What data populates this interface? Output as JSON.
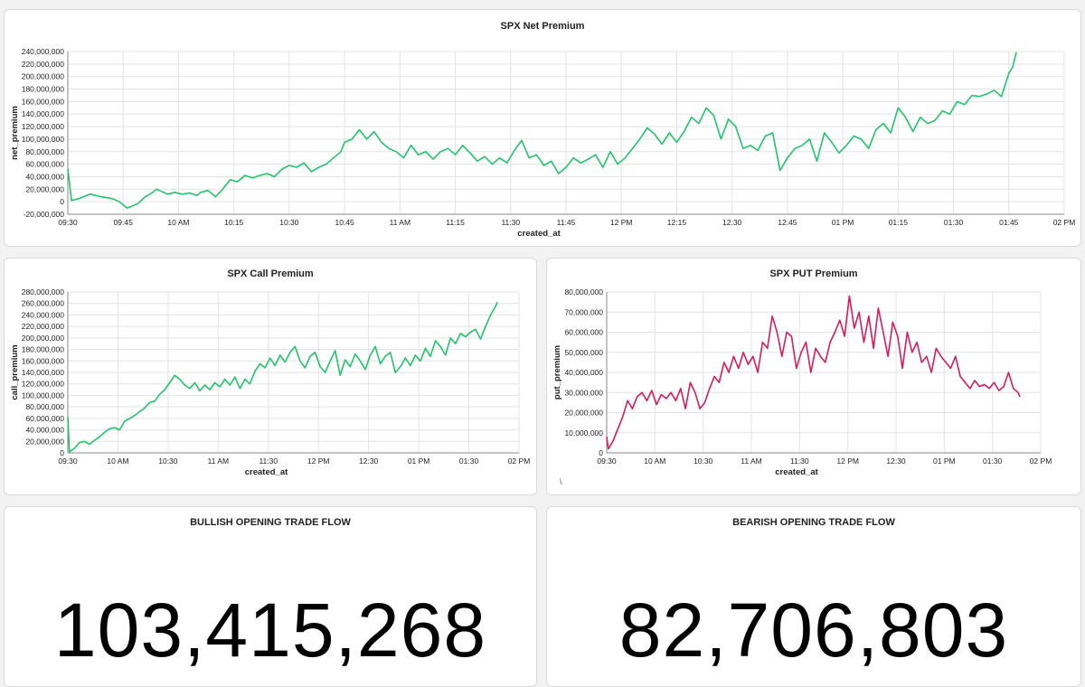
{
  "charts": [
    {
      "title": "SPX Net Premium",
      "xlabel": "created_at",
      "ylabel": "net_premium"
    },
    {
      "title": "SPX Call Premium",
      "xlabel": "created_at",
      "ylabel": "call_premium"
    },
    {
      "title": "SPX PUT Premium",
      "xlabel": "created_at",
      "ylabel": "put_premium"
    }
  ],
  "stats": {
    "bullish": {
      "title": "BULLISH OPENING TRADE FLOW",
      "value": "103,415,268"
    },
    "bearish": {
      "title": "BEARISH OPENING TRADE FLOW",
      "value": "82,706,803"
    }
  },
  "stray_mark": "\\",
  "chart_data": [
    {
      "type": "line",
      "title": "SPX Net Premium",
      "xlabel": "created_at",
      "ylabel": "net_premium",
      "color": "#21c46a",
      "xlim": [
        570,
        840
      ],
      "ylim": [
        -20000000,
        240000000
      ],
      "yticks": [
        -20000000,
        0,
        20000000,
        40000000,
        60000000,
        80000000,
        100000000,
        120000000,
        140000000,
        160000000,
        180000000,
        200000000,
        220000000,
        240000000
      ],
      "yticklabels": [
        "-20,000,000",
        "0",
        "20,000,000",
        "40,000,000",
        "60,000,000",
        "80,000,000",
        "100,000,000",
        "120,000,000",
        "140,000,000",
        "160,000,000",
        "180,000,000",
        "200,000,000",
        "220,000,000",
        "240,000,000"
      ],
      "xticks": [
        570,
        585,
        600,
        615,
        630,
        645,
        660,
        675,
        690,
        705,
        720,
        735,
        750,
        765,
        780,
        795,
        810,
        825,
        840
      ],
      "xticklabels": [
        "09:30",
        "09:45",
        "10 AM",
        "10:15",
        "10:30",
        "10:45",
        "11 AM",
        "11:15",
        "11:30",
        "11:45",
        "12 PM",
        "12:15",
        "12:30",
        "12:45",
        "01 PM",
        "01:15",
        "01:30",
        "01:45",
        "02 PM"
      ],
      "grid": true,
      "series": [
        {
          "x": [
            570,
            571,
            573,
            576,
            579,
            582,
            584,
            585,
            586,
            587,
            589,
            591,
            593,
            594,
            596,
            597,
            599,
            601,
            603,
            605,
            606,
            608,
            610,
            612,
            614,
            616,
            618,
            620,
            622,
            624,
            626,
            628,
            630,
            632,
            634,
            636,
            638,
            640,
            642,
            644,
            645,
            647,
            649,
            651,
            653,
            655,
            657,
            659,
            661,
            663,
            665,
            667,
            669,
            671,
            673,
            675,
            677,
            679,
            681,
            683,
            685,
            687,
            689,
            691,
            693,
            695,
            697,
            699,
            701,
            703,
            705,
            707,
            709,
            711,
            713,
            715,
            717,
            719,
            721,
            723,
            725,
            727,
            729,
            731,
            733,
            735,
            737,
            739,
            741,
            743,
            745,
            747,
            749,
            751,
            753,
            755,
            757,
            759,
            761,
            763,
            765,
            767,
            769,
            771,
            773,
            775,
            777,
            779,
            781,
            783,
            785,
            787,
            789,
            791,
            793,
            795,
            797,
            799,
            801,
            803,
            805,
            807,
            809,
            811,
            813,
            815,
            817,
            819,
            821,
            823,
            825,
            826,
            827
          ],
          "y": [
            52000000,
            2000000,
            5000000,
            12000000,
            8000000,
            5000000,
            0,
            -5000000,
            -10000000,
            -8000000,
            -3000000,
            8000000,
            15000000,
            20000000,
            15000000,
            12000000,
            15000000,
            12000000,
            14000000,
            10000000,
            15000000,
            18000000,
            8000000,
            20000000,
            35000000,
            32000000,
            42000000,
            38000000,
            42000000,
            45000000,
            40000000,
            52000000,
            58000000,
            55000000,
            62000000,
            48000000,
            55000000,
            60000000,
            70000000,
            80000000,
            95000000,
            100000000,
            115000000,
            100000000,
            112000000,
            95000000,
            85000000,
            80000000,
            70000000,
            90000000,
            75000000,
            80000000,
            68000000,
            80000000,
            85000000,
            75000000,
            90000000,
            78000000,
            65000000,
            72000000,
            60000000,
            70000000,
            62000000,
            82000000,
            98000000,
            70000000,
            75000000,
            58000000,
            65000000,
            45000000,
            55000000,
            70000000,
            62000000,
            68000000,
            75000000,
            55000000,
            80000000,
            60000000,
            70000000,
            85000000,
            100000000,
            118000000,
            108000000,
            92000000,
            110000000,
            95000000,
            112000000,
            135000000,
            125000000,
            150000000,
            138000000,
            100000000,
            132000000,
            120000000,
            85000000,
            90000000,
            82000000,
            105000000,
            110000000,
            50000000,
            70000000,
            85000000,
            90000000,
            100000000,
            65000000,
            110000000,
            95000000,
            78000000,
            90000000,
            105000000,
            100000000,
            85000000,
            115000000,
            125000000,
            110000000,
            150000000,
            135000000,
            112000000,
            135000000,
            125000000,
            130000000,
            145000000,
            140000000,
            160000000,
            155000000,
            170000000,
            168000000,
            172000000,
            178000000,
            168000000,
            205000000,
            215000000,
            238000000
          ]
        }
      ]
    },
    {
      "type": "line",
      "title": "SPX Call Premium",
      "xlabel": "created_at",
      "ylabel": "call_premium",
      "color": "#21c46a",
      "xlim": [
        570,
        840
      ],
      "ylim": [
        0,
        280000000
      ],
      "yticks": [
        0,
        20000000,
        40000000,
        60000000,
        80000000,
        100000000,
        120000000,
        140000000,
        160000000,
        180000000,
        200000000,
        220000000,
        240000000,
        260000000,
        280000000
      ],
      "yticklabels": [
        "0",
        "20,000,000",
        "40,000,000",
        "60,000,000",
        "80,000,000",
        "100,000,000",
        "120,000,000",
        "140,000,000",
        "160,000,000",
        "180,000,000",
        "200,000,000",
        "220,000,000",
        "240,000,000",
        "260,000,000",
        "280,000,000"
      ],
      "xticks": [
        570,
        600,
        630,
        660,
        690,
        720,
        750,
        780,
        810,
        840
      ],
      "xticklabels": [
        "09:30",
        "10 AM",
        "10:30",
        "11 AM",
        "11:30",
        "12 PM",
        "12:30",
        "01 PM",
        "01:30",
        "02 PM"
      ],
      "grid": true,
      "series": [
        {
          "x": [
            570,
            571,
            574,
            577,
            580,
            583,
            586,
            589,
            592,
            595,
            598,
            601,
            604,
            607,
            610,
            613,
            616,
            619,
            622,
            625,
            628,
            631,
            634,
            637,
            640,
            643,
            646,
            649,
            652,
            655,
            658,
            661,
            664,
            667,
            670,
            673,
            676,
            679,
            682,
            685,
            688,
            691,
            694,
            697,
            700,
            703,
            706,
            709,
            712,
            715,
            718,
            721,
            724,
            727,
            730,
            733,
            736,
            739,
            742,
            745,
            748,
            751,
            754,
            757,
            760,
            763,
            766,
            769,
            772,
            775,
            778,
            781,
            784,
            787,
            790,
            793,
            796,
            799,
            802,
            805,
            808,
            811,
            814,
            817,
            820,
            823,
            826,
            827
          ],
          "y": [
            62000000,
            2000000,
            8000000,
            18000000,
            20000000,
            15000000,
            22000000,
            28000000,
            36000000,
            42000000,
            44000000,
            40000000,
            55000000,
            60000000,
            65000000,
            72000000,
            78000000,
            88000000,
            90000000,
            102000000,
            110000000,
            122000000,
            135000000,
            128000000,
            118000000,
            112000000,
            122000000,
            108000000,
            118000000,
            110000000,
            122000000,
            115000000,
            128000000,
            118000000,
            132000000,
            112000000,
            128000000,
            120000000,
            142000000,
            155000000,
            148000000,
            165000000,
            152000000,
            170000000,
            158000000,
            175000000,
            185000000,
            160000000,
            148000000,
            168000000,
            175000000,
            150000000,
            140000000,
            160000000,
            178000000,
            135000000,
            162000000,
            150000000,
            172000000,
            160000000,
            145000000,
            170000000,
            185000000,
            155000000,
            168000000,
            175000000,
            140000000,
            150000000,
            165000000,
            152000000,
            170000000,
            160000000,
            182000000,
            168000000,
            195000000,
            185000000,
            170000000,
            200000000,
            190000000,
            208000000,
            202000000,
            210000000,
            215000000,
            198000000,
            220000000,
            240000000,
            255000000,
            262000000
          ]
        }
      ]
    },
    {
      "type": "line",
      "title": "SPX PUT Premium",
      "xlabel": "created_at",
      "ylabel": "put_premium",
      "color": "#d81b60",
      "xlim": [
        570,
        840
      ],
      "ylim": [
        0,
        80000000
      ],
      "yticks": [
        0,
        10000000,
        20000000,
        30000000,
        40000000,
        50000000,
        60000000,
        70000000,
        80000000
      ],
      "yticklabels": [
        "0",
        "10,000,000",
        "20,000,000",
        "30,000,000",
        "40,000,000",
        "50,000,000",
        "60,000,000",
        "70,000,000",
        "80,000,000"
      ],
      "xticks": [
        570,
        600,
        630,
        660,
        690,
        720,
        750,
        780,
        810,
        840
      ],
      "xticklabels": [
        "09:30",
        "10 AM",
        "10:30",
        "11 AM",
        "11:30",
        "12 PM",
        "12:30",
        "01 PM",
        "01:30",
        "02 PM"
      ],
      "grid": true,
      "series": [
        {
          "x": [
            570,
            571,
            574,
            577,
            580,
            583,
            586,
            589,
            592,
            595,
            598,
            601,
            604,
            607,
            610,
            613,
            616,
            619,
            622,
            625,
            628,
            631,
            634,
            637,
            640,
            643,
            646,
            649,
            652,
            655,
            658,
            661,
            664,
            667,
            670,
            673,
            676,
            679,
            682,
            685,
            688,
            691,
            694,
            697,
            700,
            703,
            706,
            709,
            712,
            715,
            718,
            721,
            724,
            727,
            730,
            733,
            736,
            739,
            742,
            745,
            748,
            751,
            754,
            757,
            760,
            763,
            766,
            769,
            772,
            775,
            778,
            781,
            784,
            787,
            790,
            793,
            796,
            799,
            802,
            805,
            808,
            811,
            814,
            817,
            820,
            823,
            826,
            827
          ],
          "y": [
            8000000,
            2000000,
            6000000,
            12000000,
            18000000,
            26000000,
            22000000,
            28000000,
            30000000,
            26000000,
            31000000,
            24000000,
            29000000,
            27000000,
            30000000,
            26000000,
            32000000,
            22000000,
            35000000,
            30000000,
            22000000,
            25000000,
            32000000,
            38000000,
            35000000,
            45000000,
            40000000,
            48000000,
            42000000,
            50000000,
            44000000,
            48000000,
            40000000,
            55000000,
            52000000,
            68000000,
            60000000,
            48000000,
            60000000,
            58000000,
            42000000,
            50000000,
            55000000,
            40000000,
            52000000,
            48000000,
            45000000,
            55000000,
            60000000,
            66000000,
            58000000,
            78000000,
            62000000,
            70000000,
            55000000,
            68000000,
            52000000,
            72000000,
            60000000,
            48000000,
            65000000,
            58000000,
            42000000,
            60000000,
            50000000,
            55000000,
            45000000,
            48000000,
            40000000,
            52000000,
            48000000,
            45000000,
            42000000,
            48000000,
            38000000,
            35000000,
            32000000,
            36000000,
            33000000,
            34000000,
            32000000,
            35000000,
            31000000,
            33000000,
            40000000,
            32000000,
            30000000,
            28000000
          ]
        }
      ]
    }
  ]
}
